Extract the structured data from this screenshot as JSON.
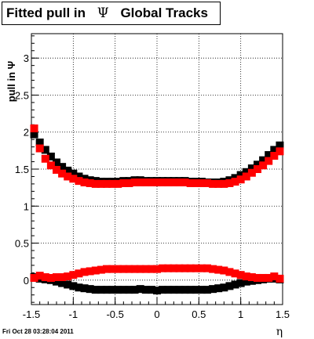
{
  "title_parts": {
    "pre": "Fitted pull in",
    "sym": "Ψ",
    "post": "Global Tracks"
  },
  "timestamp": "Fri Oct 28 03:28:04 2011",
  "colors": {
    "series_black": "#000000",
    "series_red": "#ff0000",
    "grid": "#000000"
  },
  "chart_data": {
    "type": "scatter",
    "title": "Fitted pull in Ψ   Global Tracks",
    "xlabel": "η",
    "ylabel": "pull in Ψ",
    "xlim": [
      -1.5,
      1.5
    ],
    "ylim": [
      -0.33,
      3.33
    ],
    "grid": true,
    "x_ticks": [
      "-1.5",
      "-1",
      "-0.5",
      "0",
      "0.5",
      "1",
      "1.5"
    ],
    "y_ticks": [
      "0",
      "0.5",
      "1",
      "1.5",
      "2",
      "2.5",
      "3"
    ],
    "x_tick_values": [
      -1.5,
      -1,
      -0.5,
      0,
      0.5,
      1,
      1.5
    ],
    "y_tick_values": [
      0,
      0.5,
      1,
      1.5,
      2,
      2.5,
      3
    ],
    "x": [
      -1.4667,
      -1.4,
      -1.3333,
      -1.2667,
      -1.2,
      -1.1333,
      -1.0667,
      -1.0,
      -0.9333,
      -0.8667,
      -0.8,
      -0.7333,
      -0.6667,
      -0.6,
      -0.5333,
      -0.4667,
      -0.4,
      -0.3333,
      -0.2667,
      -0.2,
      -0.1333,
      -0.0667,
      0.0,
      0.0667,
      0.1333,
      0.2,
      0.2667,
      0.3333,
      0.4,
      0.4667,
      0.5333,
      0.6,
      0.6667,
      0.7333,
      0.8,
      0.8667,
      0.9333,
      1.0,
      1.0667,
      1.1333,
      1.2,
      1.2667,
      1.3333,
      1.4,
      1.4667
    ],
    "series": [
      {
        "marker": "square",
        "color": "#000000",
        "values": [
          1.97,
          1.86,
          1.76,
          1.67,
          1.59,
          1.53,
          1.48,
          1.44,
          1.4,
          1.37,
          1.35,
          1.34,
          1.33,
          1.33,
          1.33,
          1.33,
          1.34,
          1.34,
          1.35,
          1.35,
          1.34,
          1.34,
          1.34,
          1.34,
          1.34,
          1.34,
          1.34,
          1.34,
          1.33,
          1.33,
          1.33,
          1.32,
          1.32,
          1.32,
          1.33,
          1.35,
          1.38,
          1.42,
          1.46,
          1.51,
          1.56,
          1.62,
          1.69,
          1.76,
          1.82
        ]
      },
      {
        "marker": "square",
        "color": "#000000",
        "values": [
          0.04,
          0.02,
          0.01,
          0.0,
          -0.02,
          -0.04,
          -0.06,
          -0.08,
          -0.1,
          -0.11,
          -0.12,
          -0.13,
          -0.13,
          -0.13,
          -0.13,
          -0.13,
          -0.13,
          -0.13,
          -0.13,
          -0.12,
          -0.13,
          -0.13,
          -0.14,
          -0.13,
          -0.13,
          -0.13,
          -0.13,
          -0.13,
          -0.13,
          -0.13,
          -0.13,
          -0.13,
          -0.12,
          -0.11,
          -0.1,
          -0.08,
          -0.06,
          -0.04,
          -0.02,
          -0.01,
          0.0,
          0.01,
          0.02,
          0.02,
          0.01
        ]
      },
      {
        "marker": "square",
        "color": "#ff0000",
        "values": [
          2.05,
          1.78,
          1.64,
          1.55,
          1.49,
          1.44,
          1.4,
          1.37,
          1.34,
          1.32,
          1.31,
          1.3,
          1.3,
          1.3,
          1.3,
          1.3,
          1.31,
          1.31,
          1.32,
          1.32,
          1.32,
          1.32,
          1.32,
          1.32,
          1.32,
          1.32,
          1.32,
          1.32,
          1.31,
          1.31,
          1.31,
          1.31,
          1.3,
          1.3,
          1.3,
          1.31,
          1.33,
          1.36,
          1.4,
          1.45,
          1.5,
          1.55,
          1.61,
          1.68,
          1.74
        ]
      },
      {
        "marker": "square",
        "color": "#ff0000",
        "values": [
          0.03,
          0.06,
          0.04,
          0.03,
          0.04,
          0.04,
          0.05,
          0.07,
          0.09,
          0.11,
          0.12,
          0.13,
          0.14,
          0.15,
          0.15,
          0.15,
          0.15,
          0.15,
          0.15,
          0.15,
          0.15,
          0.15,
          0.15,
          0.16,
          0.16,
          0.16,
          0.16,
          0.16,
          0.16,
          0.16,
          0.16,
          0.16,
          0.15,
          0.14,
          0.13,
          0.11,
          0.09,
          0.07,
          0.05,
          0.04,
          0.03,
          0.03,
          0.03,
          0.05,
          0.02
        ]
      }
    ]
  }
}
